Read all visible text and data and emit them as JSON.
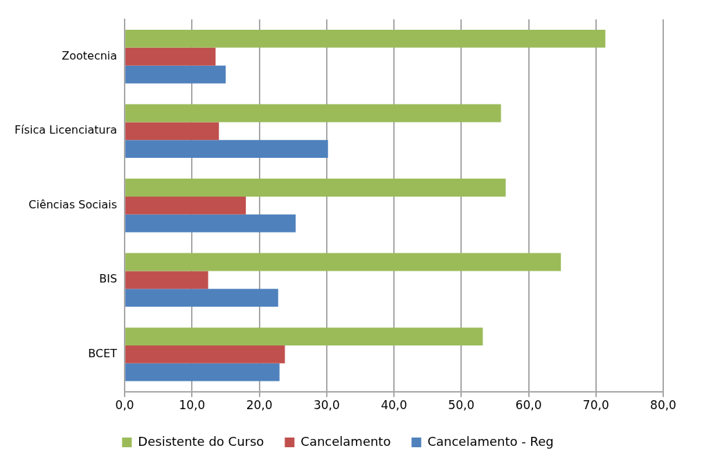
{
  "chart_data": {
    "type": "bar",
    "orientation": "horizontal",
    "categories": [
      "Zootecnia",
      "Física Licenciatura",
      "Ciências Sociais",
      "BIS",
      "BCET"
    ],
    "series": [
      {
        "name": "Desistente do Curso",
        "color": "#9bbb59",
        "values": [
          71.4,
          55.9,
          56.6,
          64.8,
          53.2
        ]
      },
      {
        "name": "Cancelamento",
        "color": "#c0504d",
        "values": [
          13.5,
          14.0,
          18.0,
          12.4,
          23.8
        ]
      },
      {
        "name": "Cancelamento - Reg",
        "color": "#4f81bd",
        "values": [
          15.0,
          30.2,
          25.4,
          22.8,
          23.0
        ]
      }
    ],
    "xlim": [
      0,
      80
    ],
    "xticks": [
      {
        "value": 0,
        "label": "0,0"
      },
      {
        "value": 10,
        "label": "10,0"
      },
      {
        "value": 20,
        "label": "20,0"
      },
      {
        "value": 30,
        "label": "30,0"
      },
      {
        "value": 40,
        "label": "40,0"
      },
      {
        "value": 50,
        "label": "50,0"
      },
      {
        "value": 60,
        "label": "60,0"
      },
      {
        "value": 70,
        "label": "70,0"
      },
      {
        "value": 80,
        "label": "80,0"
      }
    ],
    "grid": "x",
    "legend": "bottom"
  }
}
